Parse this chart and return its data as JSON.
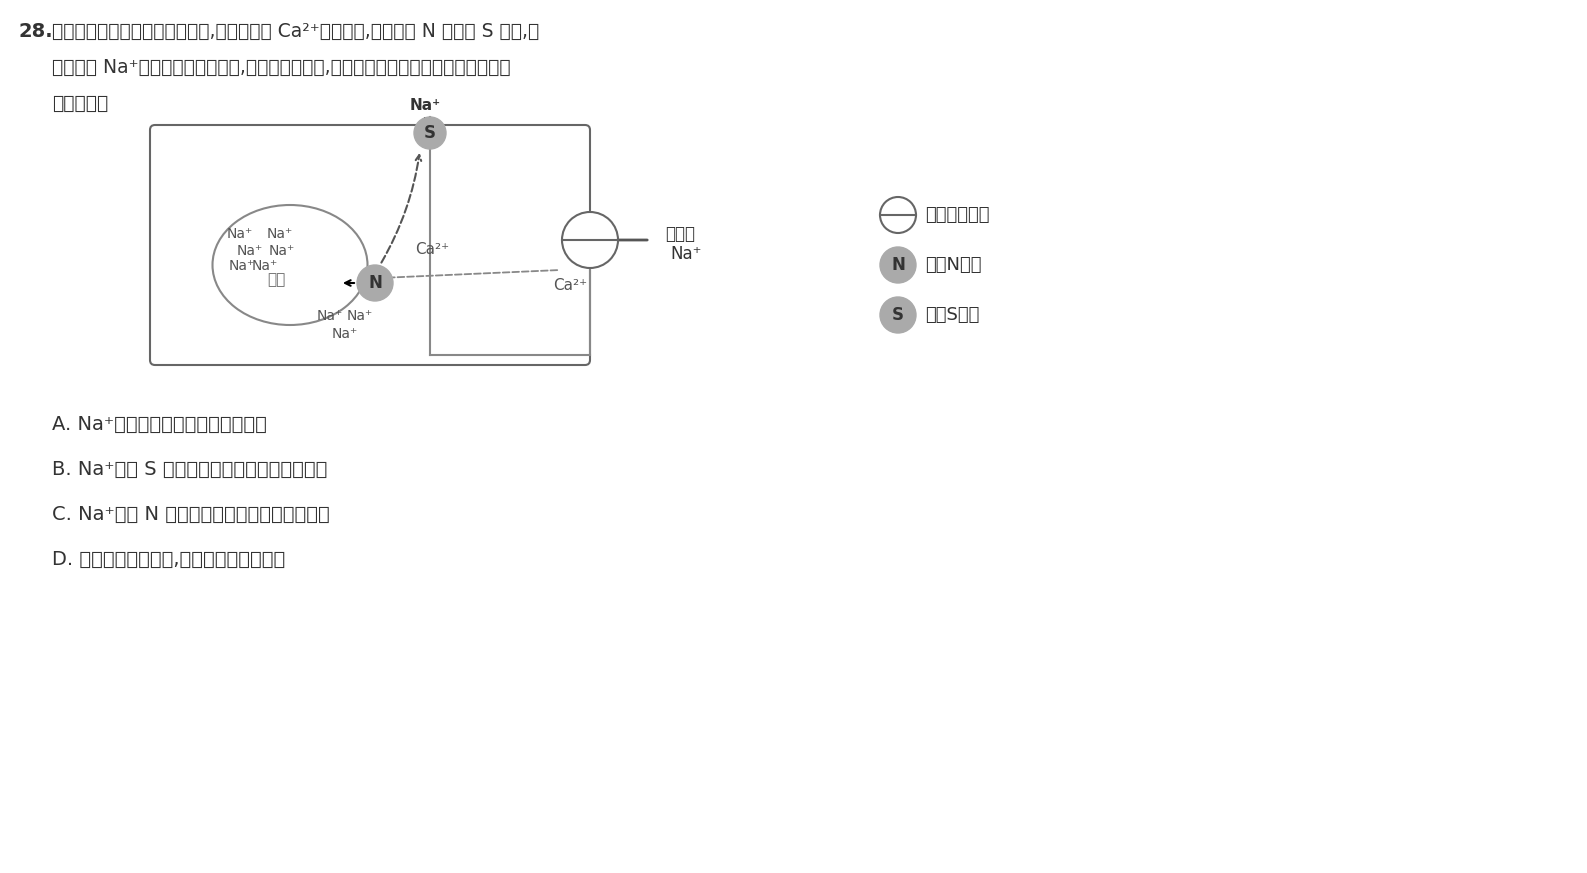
{
  "bg_color": "#f5f5f0",
  "question_number": "28.",
  "question_text_line1": "当某耐盐植物处于高盐环境中时,其根细胞内 Ca²⁺浓度升高,通过激活 N 蛋白和 S 蛋白,使",
  "question_text_line2": "细胞质中 Na⁺的浓度恢复正常水平,缓解蛋白质变性,其耐盐机制如下图所示。下列相关叙",
  "question_text_line3": "述错误的是",
  "option_A": "A. Na⁺通过协助扩散的方式进入细胞",
  "option_B": "B. Na⁺通过 S 蛋白以协助扩散的方式排出细胞",
  "option_C": "C. Na⁺通过 N 蛋白以主动运输的方式运入液泡",
  "option_D": "D. 若胞内蛋白质变性,则该蛋白质功能丧失",
  "legend_channel": "表示通道蛋白",
  "legend_N": "表示N蛋白",
  "legend_S": "表示S蛋白",
  "text_high_conc": "高浓度",
  "text_Na_plus": "Na⁺",
  "text_Ca2plus": "Ca²⁺",
  "text_vacuole": "液泡"
}
